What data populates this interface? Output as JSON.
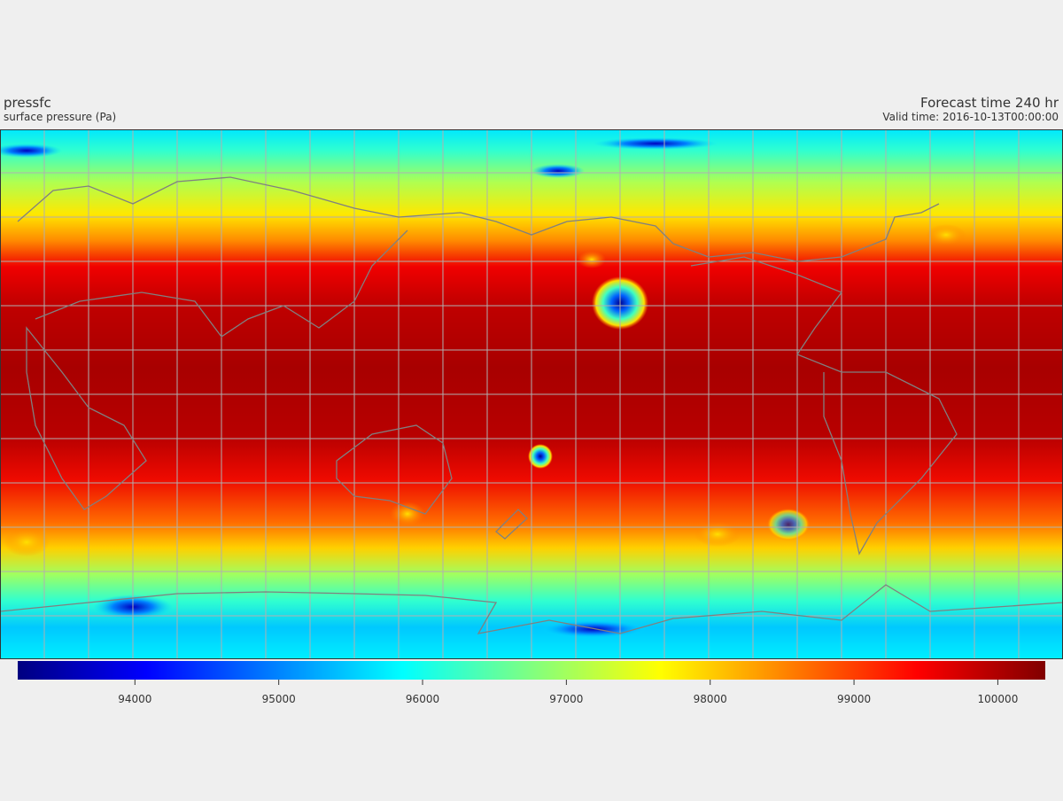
{
  "header": {
    "variable": "pressfc",
    "long_name": "surface pressure (Pa)",
    "forecast": "Forecast time 240 hr",
    "valid": "Valid time: 2016-10-13T00:00:00"
  },
  "colorbar": {
    "colormap": "jet",
    "lim": [
      93185,
      100330
    ],
    "ticks": [
      94000,
      95000,
      96000,
      97000,
      98000,
      99000,
      100000
    ]
  }
}
